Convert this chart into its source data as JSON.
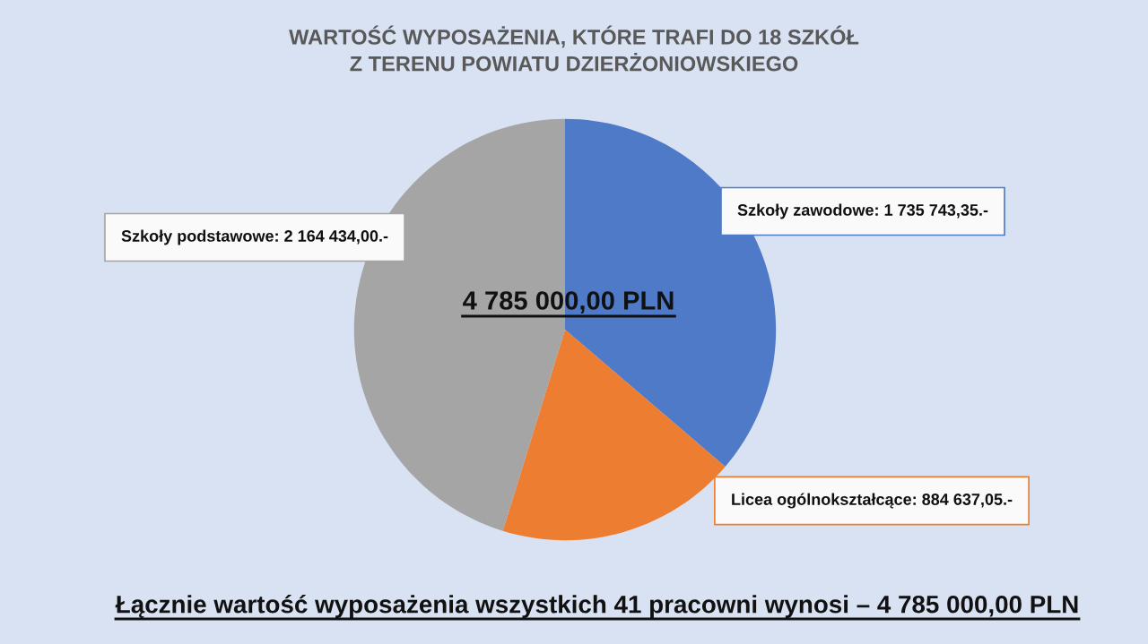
{
  "chart_data": {
    "type": "pie",
    "title": "WARTOŚĆ WYPOSAŻENIA, KTÓRE TRAFI DO 18 SZKÓŁ\nZ TERENU POWIATU DZIERŻONIOWSKIEGO",
    "categories": [
      "Szkoły zawodowe",
      "Licea ogólnokształcące",
      "Szkoły podstawowe"
    ],
    "values": [
      1735743.35,
      884637.05,
      2164434.0
    ],
    "colors": [
      "#4f7ac7",
      "#ed7d31",
      "#a5a5a5"
    ],
    "value_labels": [
      "1 735 743,35.-",
      "884 637,05.-",
      "2 164 434,00.-"
    ],
    "annotations": [
      "4 785 000,00 PLN",
      "Łącznie wartość wyposażenia wszystkich 41 pracowni wynosi – 4 785 000,00 PLN"
    ]
  }
}
